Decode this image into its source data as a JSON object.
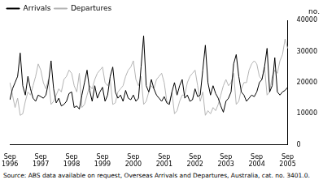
{
  "chart_data": {
    "type": "line",
    "y_label": "no.",
    "source": "Source: ABS data available on request, Overseas Arrivals and Departures, Australia, cat. no. 3401.0.",
    "categories": [
      "Sep 1996",
      null,
      null,
      null,
      null,
      null,
      null,
      null,
      null,
      null,
      null,
      null,
      "Sep 1997",
      null,
      null,
      null,
      null,
      null,
      null,
      null,
      null,
      null,
      null,
      null,
      "Sep 1998",
      null,
      null,
      null,
      null,
      null,
      null,
      null,
      null,
      null,
      null,
      null,
      "Sep 1999",
      null,
      null,
      null,
      null,
      null,
      null,
      null,
      null,
      null,
      null,
      null,
      "Sep 2000",
      null,
      null,
      null,
      null,
      null,
      null,
      null,
      null,
      null,
      null,
      null,
      "Sep 2001",
      null,
      null,
      null,
      null,
      null,
      null,
      null,
      null,
      null,
      null,
      null,
      "Sep 2002",
      null,
      null,
      null,
      null,
      null,
      null,
      null,
      null,
      null,
      null,
      null,
      "Sep 2003",
      null,
      null,
      null,
      null,
      null,
      null,
      null,
      null,
      null,
      null,
      null,
      "Sep 2004",
      null,
      null,
      null,
      null,
      null,
      null,
      null,
      null,
      null,
      null,
      null,
      "Sep 2005"
    ],
    "series": [
      {
        "name": "Arrivals",
        "color": "#000000",
        "values": [
          14500,
          18000,
          20000,
          22000,
          29500,
          19000,
          16000,
          22000,
          18000,
          15000,
          14000,
          16000,
          15500,
          15000,
          16000,
          20000,
          27000,
          18000,
          13500,
          15000,
          12500,
          13000,
          14000,
          16500,
          17000,
          12000,
          12500,
          11500,
          16000,
          20000,
          24000,
          17500,
          14000,
          19000,
          15000,
          17000,
          18500,
          14000,
          16000,
          22000,
          25000,
          17000,
          15000,
          16000,
          14000,
          17500,
          15000,
          14500,
          16000,
          14000,
          15000,
          25000,
          35000,
          19000,
          17000,
          21000,
          18000,
          16000,
          15000,
          14000,
          15500,
          13500,
          13000,
          17000,
          20000,
          16000,
          19000,
          21000,
          15000,
          16000,
          14000,
          14500,
          18000,
          15500,
          16000,
          24000,
          32000,
          20000,
          16000,
          19000,
          16500,
          15000,
          12500,
          10500,
          14000,
          15000,
          17000,
          26000,
          29000,
          22000,
          17000,
          16000,
          14000,
          15000,
          16000,
          15500,
          17000,
          20000,
          21000,
          25000,
          31000,
          17000,
          19000,
          28000,
          17000,
          16000,
          17000,
          17500,
          18500
        ]
      },
      {
        "name": "Departures",
        "color": "#b4b4b4",
        "values": [
          20000,
          16000,
          12000,
          15000,
          9500,
          10000,
          14000,
          17000,
          16000,
          19000,
          22000,
          26000,
          24000,
          20000,
          18000,
          21000,
          13000,
          14000,
          16000,
          18000,
          17000,
          21000,
          22000,
          24000,
          23000,
          19000,
          17000,
          23000,
          12000,
          13000,
          16000,
          19000,
          18000,
          21000,
          23000,
          24000,
          25000,
          20000,
          19000,
          21000,
          13000,
          13500,
          17000,
          18000,
          19000,
          22000,
          24000,
          25000,
          27000,
          21000,
          19000,
          22000,
          13000,
          14000,
          17000,
          19000,
          18000,
          21000,
          22000,
          23000,
          20000,
          14000,
          13500,
          17000,
          10000,
          11000,
          14000,
          16000,
          16000,
          20000,
          22000,
          23000,
          24000,
          19000,
          14000,
          17000,
          9500,
          11000,
          10000,
          12000,
          11000,
          13000,
          16000,
          19000,
          21000,
          19000,
          20000,
          23000,
          13000,
          14000,
          18000,
          20000,
          20000,
          24000,
          26000,
          27000,
          26000,
          22000,
          21000,
          25000,
          16000,
          17000,
          22000,
          24000,
          23000,
          27000,
          29000,
          34000,
          31000
        ]
      }
    ],
    "ylim": [
      0,
      40000
    ],
    "yticks": [
      0,
      10000,
      20000,
      30000,
      40000
    ],
    "grid": false,
    "legend": "top-left"
  }
}
